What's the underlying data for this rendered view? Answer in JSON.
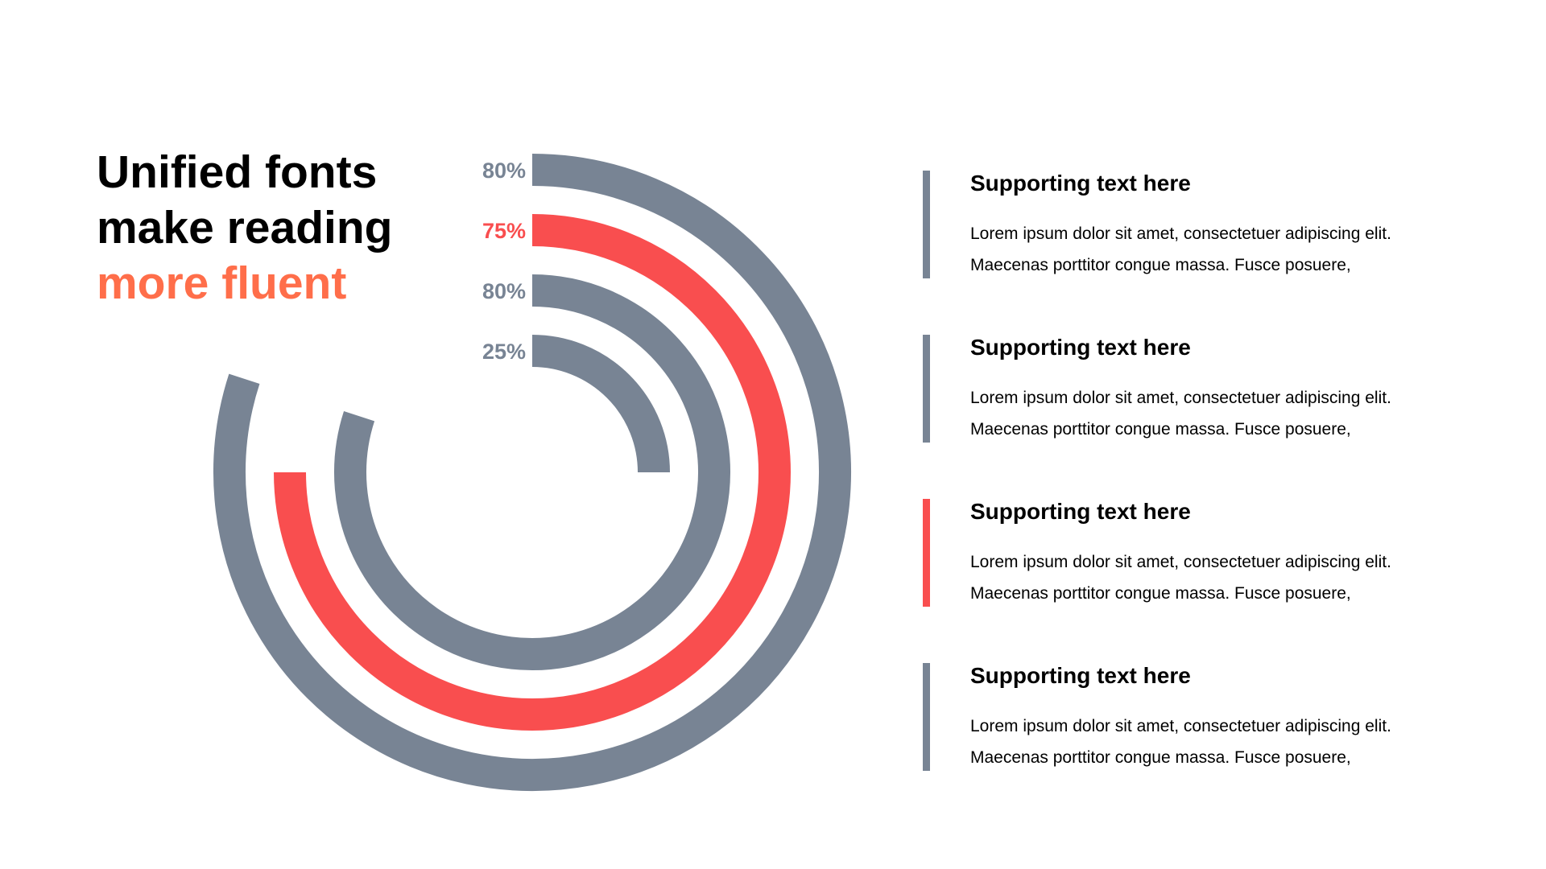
{
  "title": {
    "line1": "Unified fonts",
    "line2": "make reading",
    "line3": "more fluent"
  },
  "colors": {
    "gray": "#788494",
    "red": "#F94E4F",
    "orange": "#FF6E4A",
    "text": "#000000"
  },
  "chart_data": {
    "type": "radial-bar",
    "max": 100,
    "series": [
      {
        "label": "80%",
        "value": 80,
        "color": "#788494"
      },
      {
        "label": "75%",
        "value": 75,
        "color": "#F94E4F"
      },
      {
        "label": "80%",
        "value": 80,
        "color": "#788494"
      },
      {
        "label": "25%",
        "value": 25,
        "color": "#788494"
      }
    ]
  },
  "items": [
    {
      "heading": "Supporting text here",
      "line1": "Lorem ipsum dolor sit amet, consectetuer adipiscing elit.",
      "line2": "Maecenas porttitor congue massa. Fusce posuere,",
      "color": "#788494"
    },
    {
      "heading": "Supporting text here",
      "line1": "Lorem ipsum dolor sit amet, consectetuer adipiscing elit.",
      "line2": "Maecenas porttitor congue massa. Fusce posuere,",
      "color": "#788494"
    },
    {
      "heading": "Supporting text here",
      "line1": "Lorem ipsum dolor sit amet, consectetuer adipiscing elit.",
      "line2": "Maecenas porttitor congue massa. Fusce posuere,",
      "color": "#F94E4F"
    },
    {
      "heading": "Supporting text here",
      "line1": "Lorem ipsum dolor sit amet, consectetuer adipiscing elit.",
      "line2": "Maecenas porttitor congue massa. Fusce posuere,",
      "color": "#788494"
    }
  ]
}
